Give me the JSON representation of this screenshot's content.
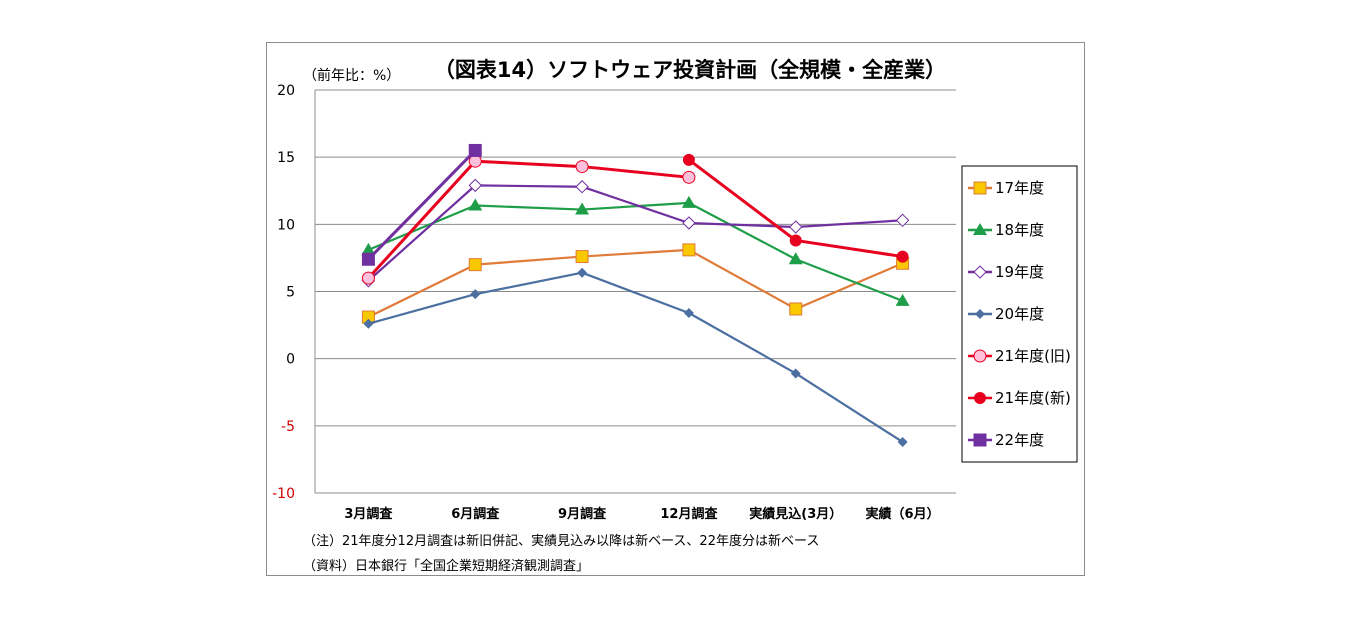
{
  "chart_data": {
    "type": "line",
    "title": "（図表14）ソフトウェア投資計画（全規模・全産業）",
    "ylabel": "（前年比：%）",
    "ylim": [
      -10,
      20
    ],
    "yticks": [
      20,
      15,
      10,
      5,
      0,
      -5,
      -10
    ],
    "grid": true,
    "legend_position": "right",
    "categories": [
      "3月調査",
      "6月調査",
      "9月調査",
      "12月調査",
      "実績見込(3月）",
      "実績（6月）"
    ],
    "series": [
      {
        "name": "17年度",
        "color": "#E07B39",
        "marker": "square",
        "fill": "#F9C800",
        "values": [
          3.1,
          7.0,
          7.6,
          8.1,
          3.7,
          7.1
        ]
      },
      {
        "name": "18年度",
        "color": "#1E9E48",
        "marker": "triangle",
        "fill": "#1E9E48",
        "values": [
          8.1,
          11.4,
          11.1,
          11.6,
          7.4,
          4.3
        ]
      },
      {
        "name": "19年度",
        "color": "#7030A0",
        "marker": "diamond-open",
        "fill": "#ffffff",
        "values": [
          5.8,
          12.9,
          12.8,
          10.1,
          9.8,
          10.3
        ]
      },
      {
        "name": "20年度",
        "color": "#4A6FA0",
        "marker": "diamond",
        "fill": "#4A6FA0",
        "values": [
          2.6,
          4.8,
          6.4,
          3.4,
          -1.1,
          -6.2
        ]
      },
      {
        "name": "21年度(旧)",
        "color": "#E8001F",
        "marker": "circle-pink",
        "fill": "#FFC0DC",
        "values": [
          6.0,
          14.7,
          14.3,
          13.5,
          null,
          null
        ]
      },
      {
        "name": "21年度(新)",
        "color": "#E8001F",
        "marker": "circle",
        "fill": "#E8001F",
        "values": [
          null,
          null,
          null,
          14.8,
          8.8,
          7.6
        ]
      },
      {
        "name": "22年度",
        "color": "#7030A0",
        "marker": "square",
        "fill": "#7030A0",
        "values": [
          7.4,
          15.5,
          null,
          null,
          null,
          null
        ]
      }
    ]
  },
  "notes": {
    "note1": "（注）21年度分12月調査は新旧併記、実績見込み以降は新ベース、22年度分は新ベース",
    "note2": "（資料）日本銀行「全国企業短期経済観測調査」"
  }
}
